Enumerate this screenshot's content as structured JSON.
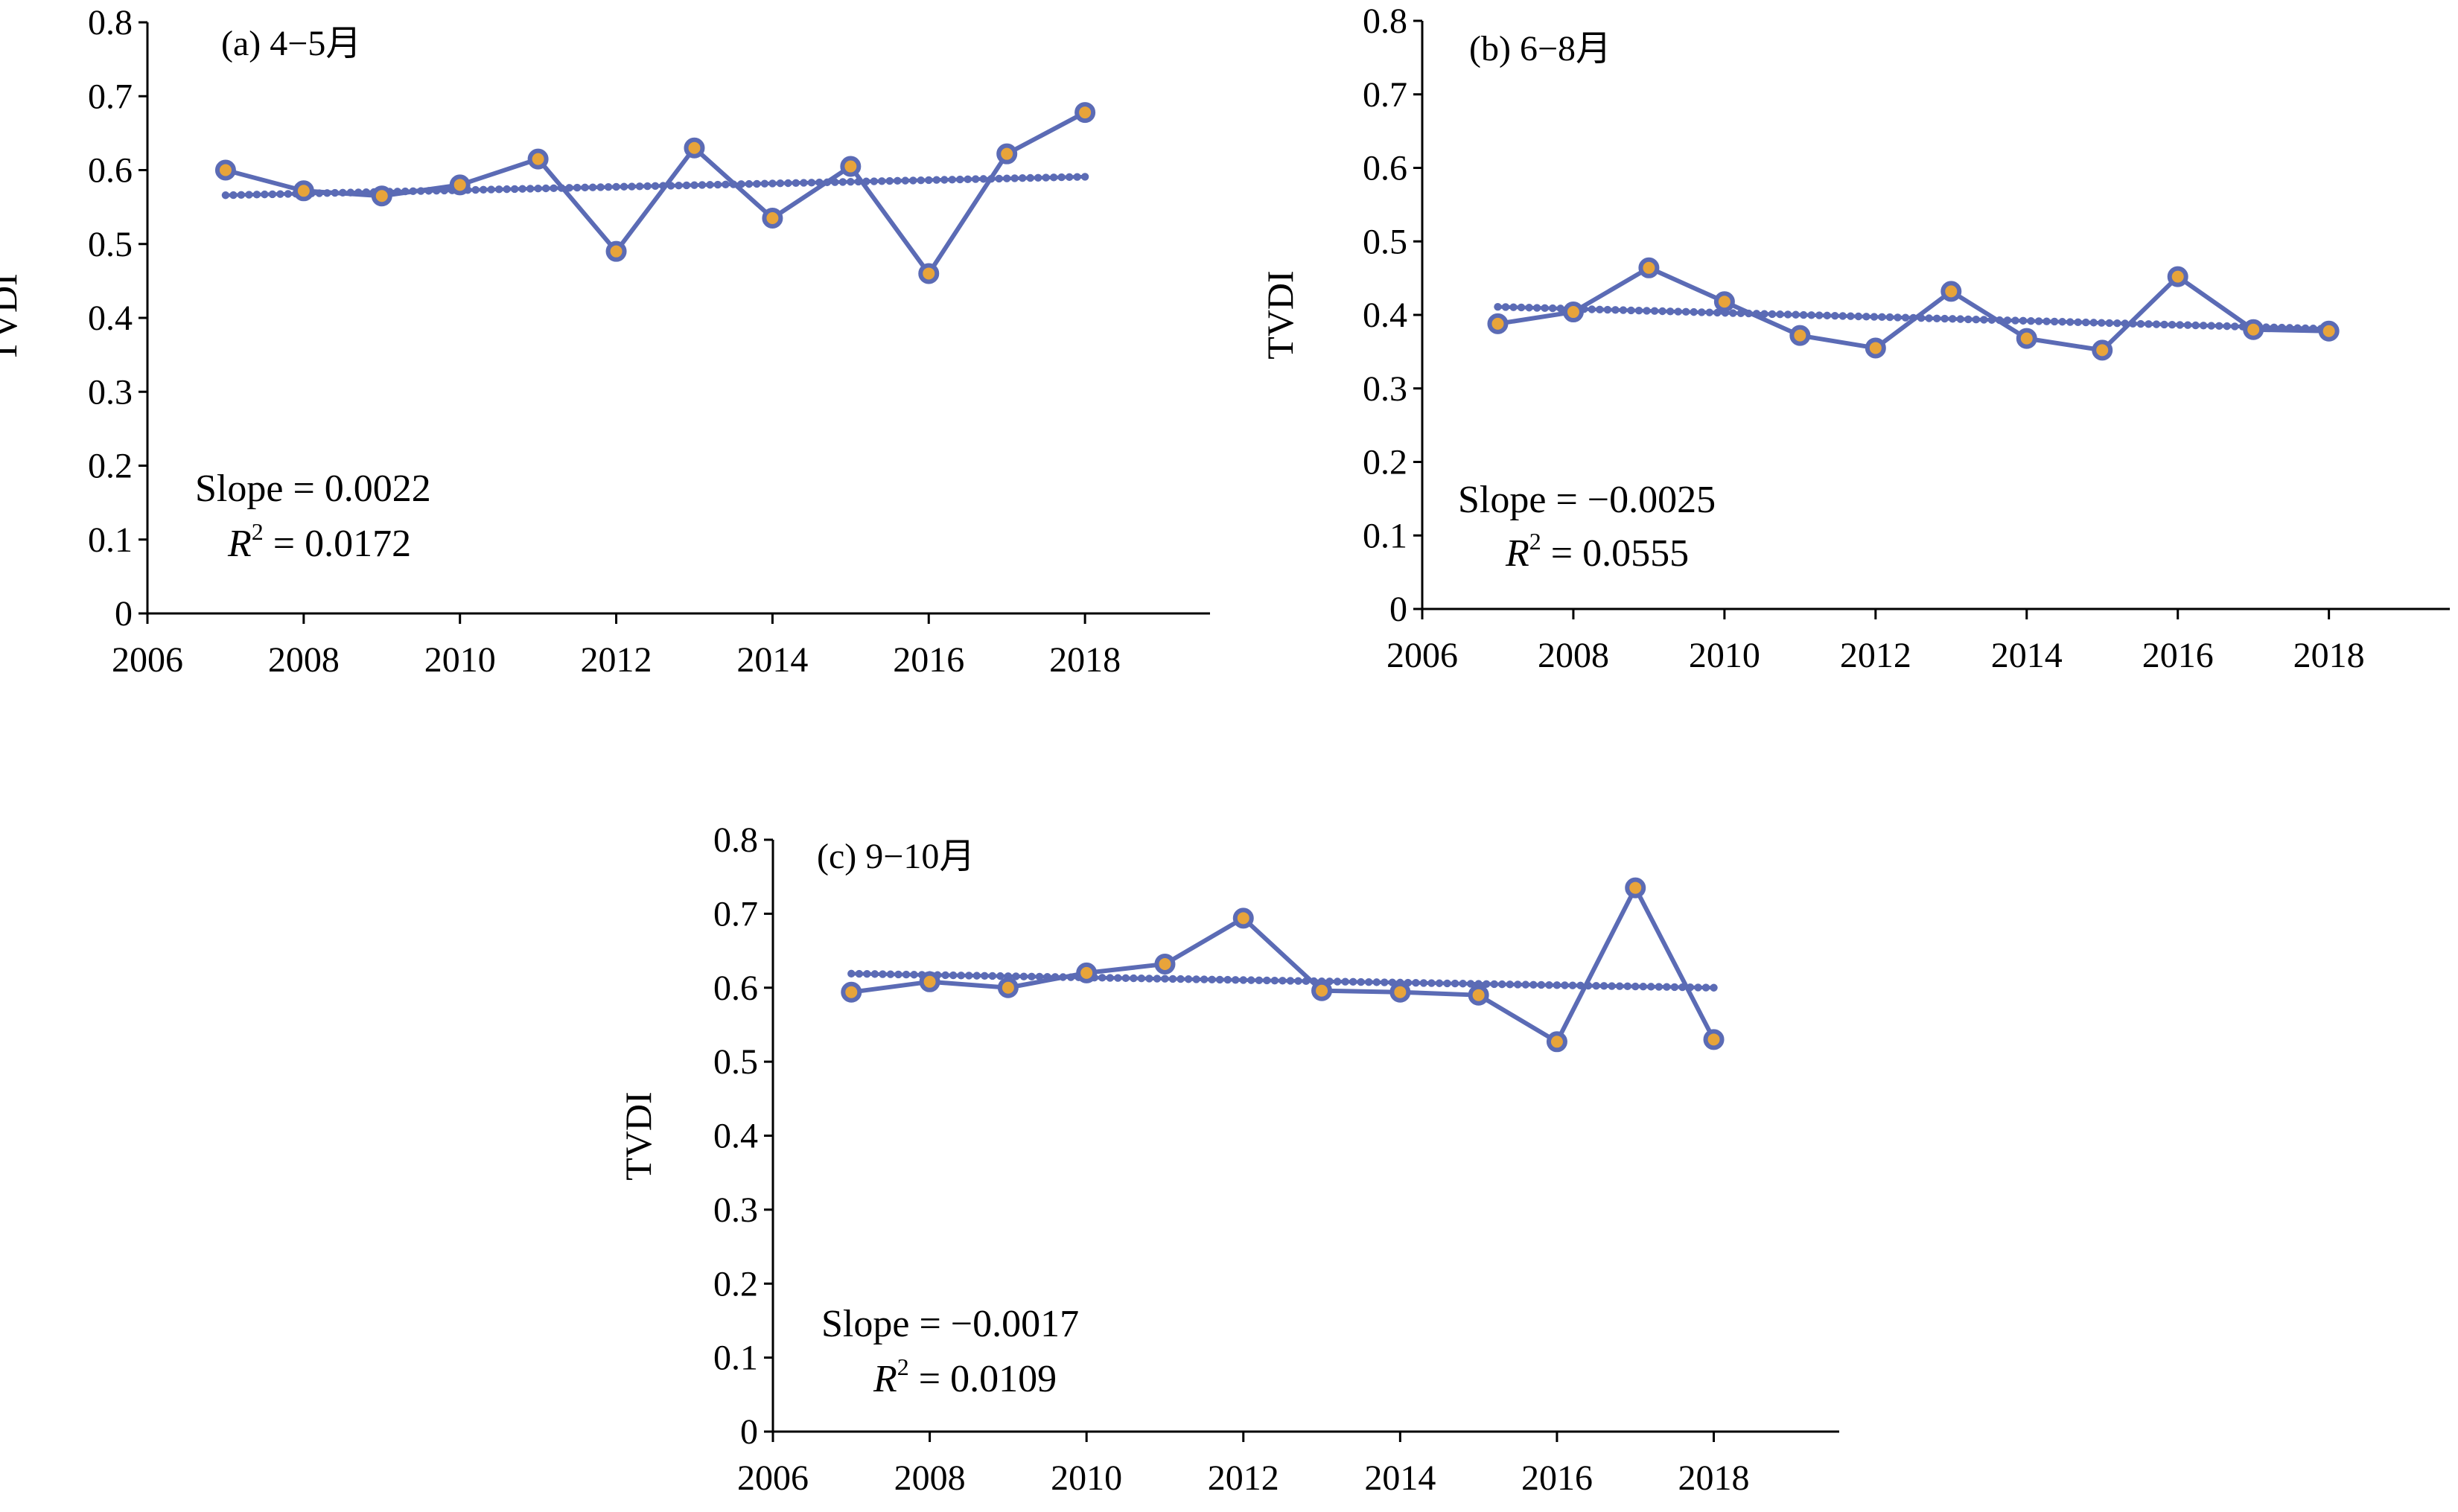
{
  "chart_data": [
    {
      "type": "line",
      "title": "(a) 4−5月",
      "xlabel": "",
      "ylabel": "TVDI",
      "xlim": [
        2006,
        2019.6
      ],
      "ylim": [
        0,
        0.8
      ],
      "xticks": [
        2006,
        2008,
        2010,
        2012,
        2014,
        2016,
        2018
      ],
      "yticks": [
        0,
        0.1,
        0.2,
        0.3,
        0.4,
        0.5,
        0.6,
        0.7,
        0.8
      ],
      "x": [
        2007,
        2008,
        2009,
        2010,
        2011,
        2012,
        2013,
        2014,
        2015,
        2016,
        2017,
        2018
      ],
      "values": [
        0.6,
        0.572,
        0.565,
        0.58,
        0.615,
        0.49,
        0.63,
        0.535,
        0.605,
        0.46,
        0.622,
        0.678
      ],
      "trend": {
        "start": [
          2007,
          0.566
        ],
        "end": [
          2018,
          0.591
        ]
      },
      "slope_text": "Slope = 0.0022",
      "r2_value": " = 0.0172"
    },
    {
      "type": "line",
      "title": "(b) 6−8月",
      "xlabel": "",
      "ylabel": "TVDI",
      "xlim": [
        2006,
        2019.6
      ],
      "ylim": [
        0,
        0.8
      ],
      "xticks": [
        2006,
        2008,
        2010,
        2012,
        2014,
        2016,
        2018
      ],
      "yticks": [
        0,
        0.1,
        0.2,
        0.3,
        0.4,
        0.5,
        0.6,
        0.7,
        0.8
      ],
      "x": [
        2007,
        2008,
        2009,
        2010,
        2011,
        2012,
        2013,
        2014,
        2015,
        2016,
        2017,
        2018
      ],
      "values": [
        0.388,
        0.404,
        0.464,
        0.418,
        0.372,
        0.355,
        0.432,
        0.368,
        0.352,
        0.452,
        0.38,
        0.378
      ],
      "trend": {
        "start": [
          2007,
          0.411
        ],
        "end": [
          2018,
          0.381
        ]
      },
      "slope_text": "Slope = −0.0025",
      "r2_value": " = 0.0555"
    },
    {
      "type": "line",
      "title": "(c) 9−10月",
      "xlabel": "",
      "ylabel": "TVDI",
      "xlim": [
        2006,
        2019.6
      ],
      "ylim": [
        0,
        0.8
      ],
      "xticks": [
        2006,
        2008,
        2010,
        2012,
        2014,
        2016,
        2018
      ],
      "yticks": [
        0,
        0.1,
        0.2,
        0.3,
        0.4,
        0.5,
        0.6,
        0.7,
        0.8
      ],
      "x": [
        2007,
        2008,
        2009,
        2010,
        2011,
        2012,
        2013,
        2014,
        2015,
        2016,
        2017,
        2018
      ],
      "values": [
        0.594,
        0.608,
        0.6,
        0.62,
        0.632,
        0.694,
        0.596,
        0.594,
        0.59,
        0.527,
        0.735,
        0.53
      ],
      "trend": {
        "start": [
          2007,
          0.619
        ],
        "end": [
          2018,
          0.6
        ]
      },
      "slope_text": "Slope = −0.0017",
      "r2_value": " = 0.0109"
    }
  ],
  "r2_symbol": "R",
  "r2_exponent": "2",
  "colors": {
    "line": "#5b6bb5",
    "marker_fill": "#e8a43a",
    "axis": "#000000"
  }
}
